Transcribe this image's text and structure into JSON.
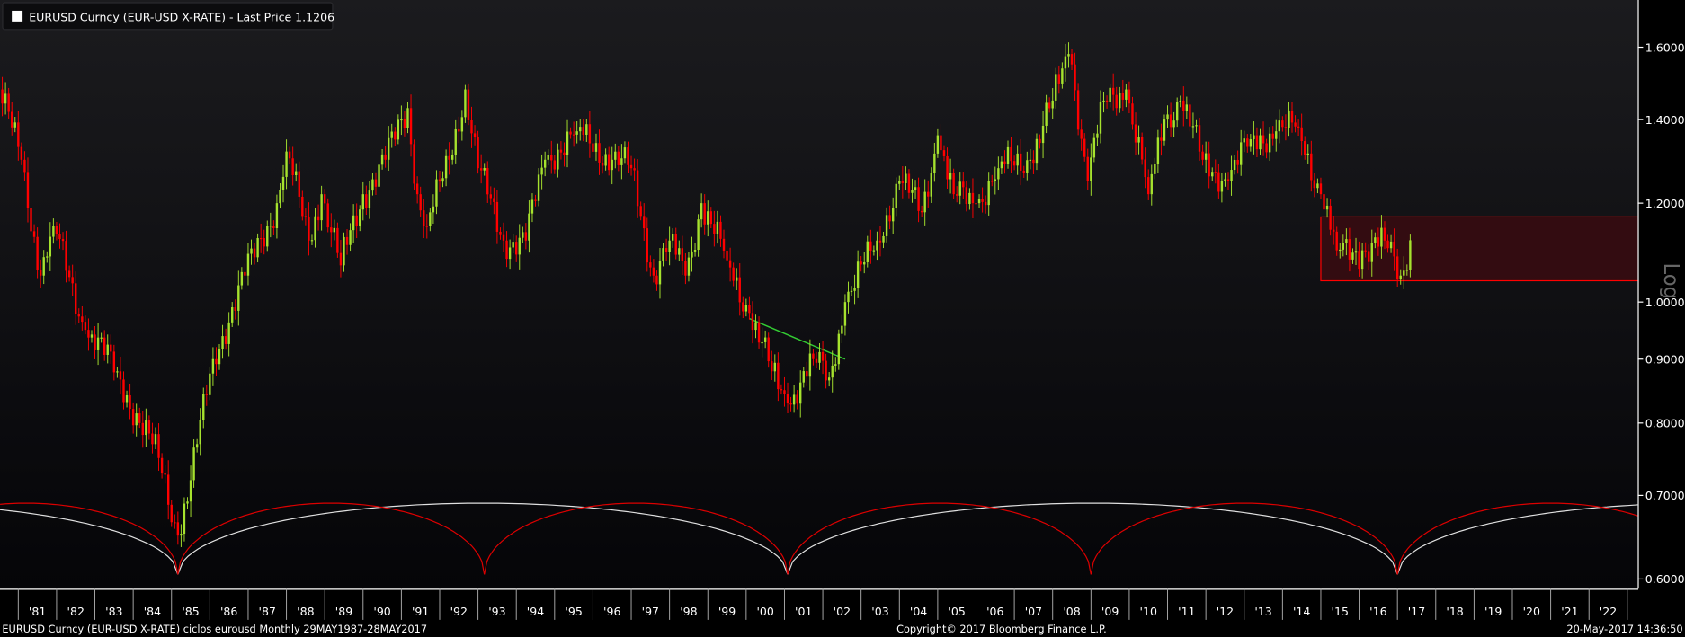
{
  "legend": {
    "swatch_color": "#ffffff",
    "text": "EURUSD Curncy (EUR-USD X-RATE) - Last Price 1.1206"
  },
  "axis_scale_label": "Log",
  "footer": {
    "left": "EURUSD Curncy (EUR-USD X-RATE) ciclos eurousd  Monthly 29MAY1987-28MAY2017",
    "center": "Copyright© 2017 Bloomberg Finance L.P.",
    "right": "20-May-2017 14:36:50"
  },
  "colors": {
    "up": "#a6e22e",
    "down": "#ff0000",
    "background_top": "#1b1b1e",
    "background_bottom": "#050508",
    "box": "#ff0000",
    "trendline": "#33cc33",
    "cycle_long": "#e0e0e0",
    "cycle_short": "#dd0000"
  },
  "chart_data": {
    "type": "bar",
    "series_name": "EURUSD Curncy (EUR-USD X-RATE)",
    "frequency": "Monthly",
    "y_scale": "log",
    "ylim": [
      0.585,
      1.68
    ],
    "xlim": [
      "1980-07",
      "2023-04"
    ],
    "y_ticks": [
      "1.6000",
      "1.4000",
      "1.2000",
      "1.0000",
      "0.9000",
      "0.8000",
      "0.7000",
      "0.6000"
    ],
    "x_ticks": [
      "'81",
      "'82",
      "'83",
      "'84",
      "'85",
      "'86",
      "'87",
      "'88",
      "'89",
      "'90",
      "'91",
      "'92",
      "'93",
      "'94",
      "'95",
      "'96",
      "'97",
      "'98",
      "'99",
      "'00",
      "'01",
      "'02",
      "'03",
      "'04",
      "'05",
      "'06",
      "'07",
      "'08",
      "'09",
      "'10",
      "'11",
      "'12",
      "'13",
      "'14",
      "'15",
      "'16",
      "'17",
      "'18",
      "'19",
      "'20",
      "'21",
      "'22"
    ],
    "last_price": 1.1206,
    "close_points": [
      [
        "1980-07",
        1.48
      ],
      [
        "1981-02",
        1.3
      ],
      [
        "1981-08",
        1.05
      ],
      [
        "1981-12",
        1.15
      ],
      [
        "1982-10",
        0.95
      ],
      [
        "1983-08",
        0.88
      ],
      [
        "1984-03",
        0.8
      ],
      [
        "1984-09",
        0.75
      ],
      [
        "1985-03",
        0.65
      ],
      [
        "1985-07",
        0.72
      ],
      [
        "1986-02",
        0.9
      ],
      [
        "1986-12",
        1.05
      ],
      [
        "1987-10",
        1.2
      ],
      [
        "1988-01",
        1.32
      ],
      [
        "1988-08",
        1.12
      ],
      [
        "1988-12",
        1.22
      ],
      [
        "1989-06",
        1.07
      ],
      [
        "1990-01",
        1.22
      ],
      [
        "1990-08",
        1.3
      ],
      [
        "1991-03",
        1.43
      ],
      [
        "1991-06",
        1.22
      ],
      [
        "1991-09",
        1.15
      ],
      [
        "1992-04",
        1.3
      ],
      [
        "1992-09",
        1.48
      ],
      [
        "1993-01",
        1.28
      ],
      [
        "1993-09",
        1.12
      ],
      [
        "1994-04",
        1.12
      ],
      [
        "1994-10",
        1.3
      ],
      [
        "1995-08",
        1.37
      ],
      [
        "1996-07",
        1.3
      ],
      [
        "1997-01",
        1.28
      ],
      [
        "1997-08",
        1.05
      ],
      [
        "1998-01",
        1.12
      ],
      [
        "1998-06",
        1.05
      ],
      [
        "1998-11",
        1.2
      ],
      [
        "1999-07",
        1.08
      ],
      [
        "2000-02",
        0.98
      ],
      [
        "2000-09",
        0.88
      ],
      [
        "2001-02",
        0.83
      ],
      [
        "2001-10",
        0.9
      ],
      [
        "2002-03",
        0.87
      ],
      [
        "2002-08",
        1.0
      ],
      [
        "2003-06",
        1.12
      ],
      [
        "2004-01",
        1.25
      ],
      [
        "2004-08",
        1.18
      ],
      [
        "2005-01",
        1.36
      ],
      [
        "2005-06",
        1.22
      ],
      [
        "2006-01",
        1.2
      ],
      [
        "2006-08",
        1.28
      ],
      [
        "2007-06",
        1.3
      ],
      [
        "2008-01",
        1.45
      ],
      [
        "2008-06",
        1.58
      ],
      [
        "2008-07",
        1.55
      ],
      [
        "2008-12",
        1.25
      ],
      [
        "2009-05",
        1.45
      ],
      [
        "2009-12",
        1.48
      ],
      [
        "2010-07",
        1.22
      ],
      [
        "2010-12",
        1.4
      ],
      [
        "2011-05",
        1.45
      ],
      [
        "2011-12",
        1.3
      ],
      [
        "2012-08",
        1.25
      ],
      [
        "2013-03",
        1.35
      ],
      [
        "2013-11",
        1.37
      ],
      [
        "2014-06",
        1.38
      ],
      [
        "2015-01",
        1.22
      ],
      [
        "2015-06",
        1.1
      ],
      [
        "2016-02",
        1.1
      ],
      [
        "2016-09",
        1.12
      ],
      [
        "2017-02",
        1.05
      ],
      [
        "2017-05",
        1.1206
      ]
    ],
    "annotations": {
      "range_box": {
        "from": "2015-01",
        "to": "2023-04",
        "low": 1.04,
        "high": 1.17
      },
      "trendline": {
        "from": [
          "2000-02",
          0.97
        ],
        "to": [
          "2002-08",
          0.9
        ]
      },
      "cycles": [
        {
          "kind": "long",
          "lows": [
            "1969-04",
            "1985-03",
            "2001-02",
            "2017-01",
            "2033-01"
          ],
          "trough": 0.605,
          "peak": 0.69
        },
        {
          "kind": "short",
          "lows": [
            "1977-04",
            "1985-03",
            "1993-03",
            "2001-02",
            "2009-01",
            "2017-01",
            "2025-01"
          ],
          "trough": 0.605,
          "peak": 0.69
        }
      ]
    }
  }
}
